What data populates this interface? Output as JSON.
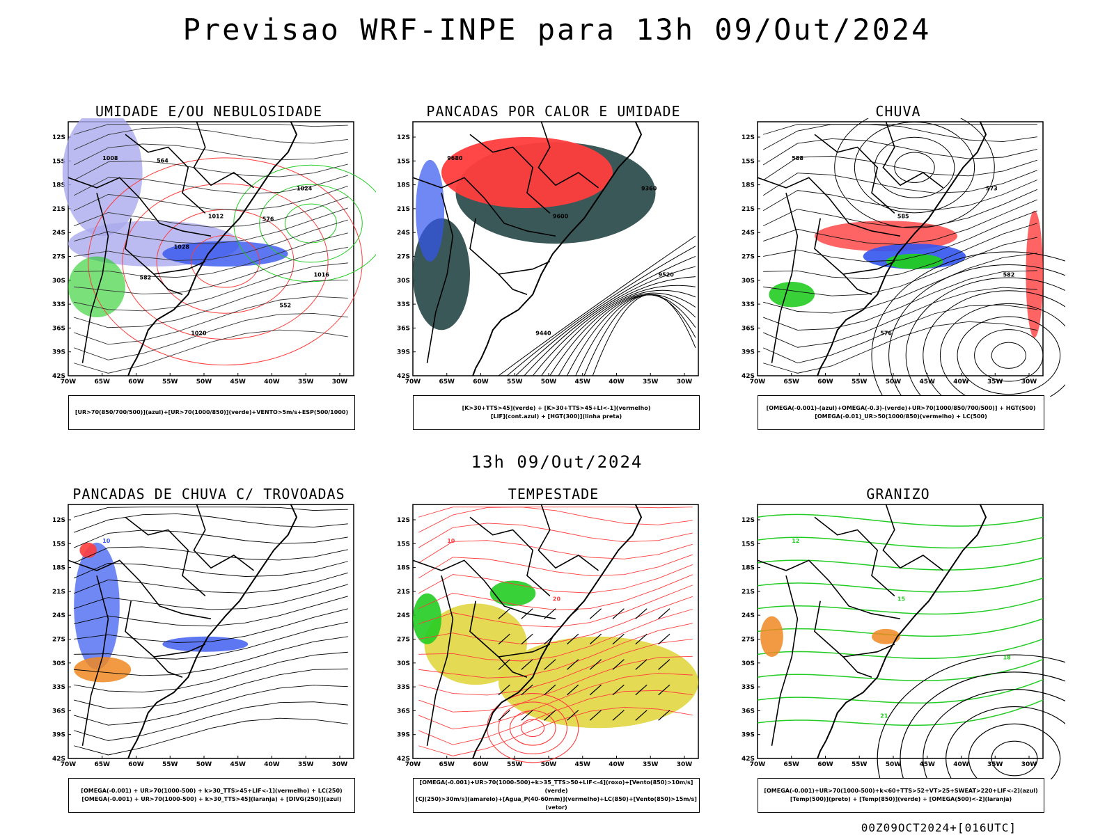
{
  "title": "Previsao WRF-INPE  para 13h 09/Out/2024",
  "mid_title": "13h 09/Out/2024",
  "footer": "00Z09OCT2024+[016UTC]",
  "lat_labels": [
    "12S",
    "15S",
    "18S",
    "21S",
    "24S",
    "27S",
    "30S",
    "33S",
    "36S",
    "39S",
    "42S"
  ],
  "lon_labels": [
    "70W",
    "65W",
    "60W",
    "55W",
    "50W",
    "45W",
    "40W",
    "35W",
    "30W"
  ],
  "colors": {
    "red": "#ff3d3d",
    "green": "#22cc22",
    "blue": "#3355ee",
    "lavender": "#aaaaee",
    "darkgreen": "#2f4f4f",
    "yellow": "#e3d84a",
    "orange": "#ee8822",
    "black": "#000000"
  },
  "panels": [
    {
      "title": "UMIDADE E/OU NEBULOSIDADE",
      "legend": [
        "[UR>70(850/700/500)](azul)+[UR>70(1000/850)](verde)+VENTO>5m/s+ESP(500/1000)"
      ],
      "contour_labels": [
        "1008",
        "1012",
        "1016",
        "1020",
        "1024",
        "1028",
        "552",
        "564",
        "576",
        "582"
      ]
    },
    {
      "title": "PANCADAS POR CALOR E UMIDADE",
      "legend": [
        "[K>30+TTS>45](verde) + [K>30+TTS>45+LI<-1](vermelho)",
        "[LIF](cont.azul) + [HGT(300)](linha preta)"
      ],
      "contour_labels": [
        "9680",
        "9600",
        "9520",
        "9440",
        "9360"
      ]
    },
    {
      "title": "CHUVA",
      "legend": [
        "[OMEGA(-0.001)-(azul)+OMEGA(-0.3)-(verde)+UR>70(1000/850/700/500)] + HGT(500)",
        "[OMEGA(-0.01)_UR>50(1000/850)(vermelho) + LC(500)"
      ],
      "contour_labels": [
        "588",
        "585",
        "582",
        "576",
        "573"
      ]
    },
    {
      "title": "PANCADAS DE CHUVA C/ TROVOADAS",
      "legend": [
        "[OMEGA(-0.001) + UR>70(1000-500) + k>30_TTS>45+LIF<-1](vermelho) + LC(250)",
        "[OMEGA(-0.001) + UR>70(1000-500) + k>30_TTS>45](laranja) + [DIVG(250)](azul)"
      ],
      "contour_labels": [
        "10"
      ]
    },
    {
      "title": "TEMPESTADE",
      "legend": [
        "[OMEGA(-0.001)+UR>70(1000-500)+k>35_TTS>50+LIF<-4](roxo)+[Vento(850)>10m/s](verde)",
        "[CJ(250)>30m/s](amarelo)+[Agua_P(40-60mm)](vermelho)+LC(850)+[Vento(850)>15m/s](vetor)"
      ],
      "contour_labels": [
        "10",
        "20"
      ]
    },
    {
      "title": "GRANIZO",
      "legend": [
        "[OMEGA(-0.001)+UR>70(1000-500)+k<60+TTS>52+VT>25+SWEAT>220+LIF<-2](azul)",
        "[Temp(500)](preto) + [Temp(850)](verde) + [OMEGA(500)<-2](laranja)"
      ],
      "contour_labels": [
        "12",
        "15",
        "18",
        "21"
      ]
    }
  ]
}
